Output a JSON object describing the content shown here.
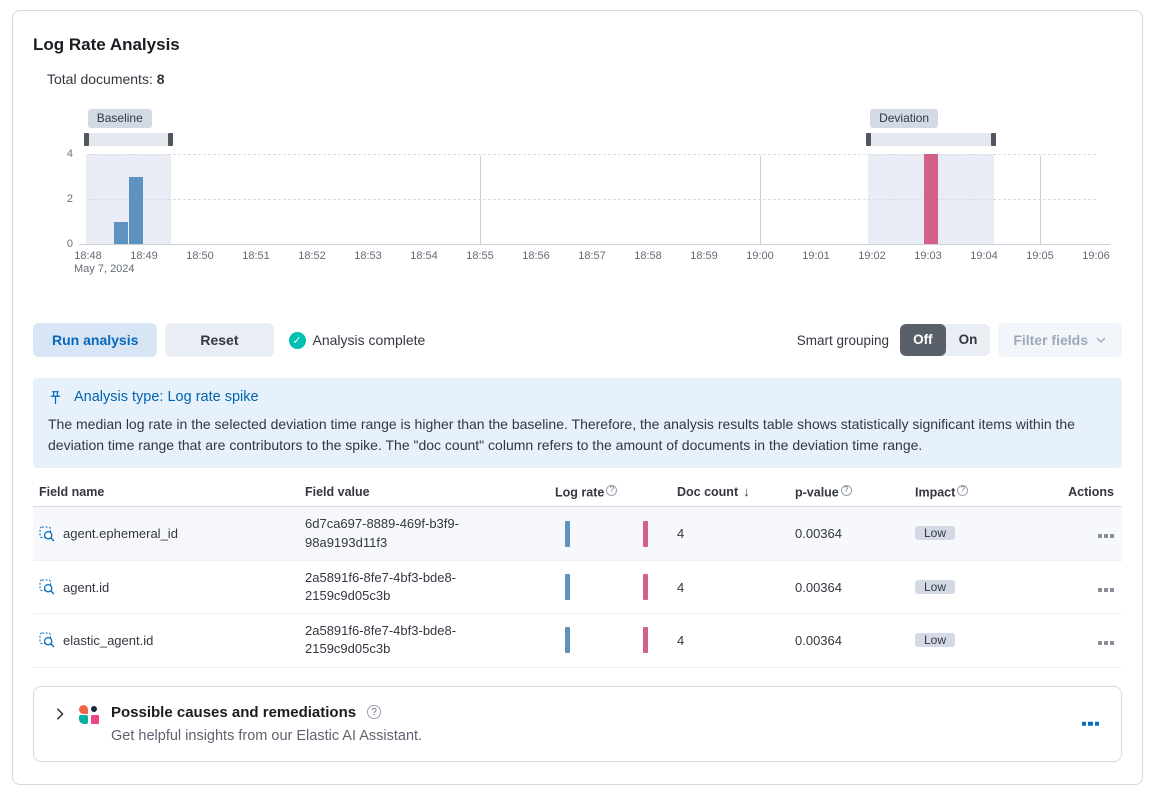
{
  "panel": {
    "title": "Log Rate Analysis"
  },
  "summary": {
    "label": "Total documents:",
    "value": "8"
  },
  "chart_data": {
    "type": "bar",
    "ylim": [
      0,
      4
    ],
    "yticks": [
      0,
      2,
      4
    ],
    "xticks": [
      "18:48",
      "18:49",
      "18:50",
      "18:51",
      "18:52",
      "18:53",
      "18:54",
      "18:55",
      "18:56",
      "18:57",
      "18:58",
      "18:59",
      "19:00",
      "19:01",
      "19:02",
      "19:03",
      "19:04",
      "19:05",
      "19:06"
    ],
    "vertical_gridline_indices": [
      7,
      12,
      17
    ],
    "date_label": "May 7, 2024",
    "bars": [
      {
        "time": "18:48:30",
        "offset_min": 0.464,
        "width_min": 0.25,
        "count": 1,
        "series": "baseline"
      },
      {
        "time": "18:48:45",
        "offset_min": 0.732,
        "width_min": 0.25,
        "count": 3,
        "series": "baseline"
      },
      {
        "time": "19:03:00",
        "offset_min": 14.93,
        "width_min": 0.25,
        "count": 4,
        "series": "deviation"
      }
    ],
    "windows": {
      "baseline": {
        "label": "Baseline",
        "from_min": -0.04,
        "to_min": 1.48,
        "from_time": "18:48:00",
        "to_time": "18:49:30"
      },
      "deviation": {
        "label": "Deviation",
        "from_min": 13.93,
        "to_min": 16.18,
        "from_time": "19:02:00",
        "to_time": "19:04:10"
      }
    },
    "colors": {
      "baseline_bar": "#6092c0",
      "deviation_bar": "#d36086",
      "window_fill": "#e9ecf4",
      "brush_fill": "#e4e8ef",
      "brush_handle": "#50555e"
    }
  },
  "controls": {
    "run_button": "Run analysis",
    "reset_button": "Reset",
    "status": "Analysis complete",
    "smart_grouping_label": "Smart grouping",
    "toggle_off": "Off",
    "toggle_on": "On",
    "filter_fields": "Filter fields"
  },
  "callout": {
    "title": "Analysis type: Log rate spike",
    "body": "The median log rate in the selected deviation time range is higher than the baseline. Therefore, the analysis results table shows statistically significant items within the deviation time range that are contributors to the spike. The \"doc count\" column refers to the amount of documents in the deviation time range."
  },
  "table": {
    "columns": [
      "Field name",
      "Field value",
      "Log rate",
      "Doc count",
      "p-value",
      "Impact",
      "Actions"
    ],
    "sorted_column": "Doc count",
    "sort_direction": "descending",
    "rows": [
      {
        "field_name": "agent.ephemeral_id",
        "field_value": "6d7ca697-8889-469f-b3f9-98a9193d11f3",
        "doc_count": "4",
        "p_value": "0.00364",
        "impact": "Low"
      },
      {
        "field_name": "agent.id",
        "field_value": "2a5891f6-8fe7-4bf3-bde8-2159c9d05c3b",
        "doc_count": "4",
        "p_value": "0.00364",
        "impact": "Low"
      },
      {
        "field_name": "elastic_agent.id",
        "field_value": "2a5891f6-8fe7-4bf3-bde8-2159c9d05c3b",
        "doc_count": "4",
        "p_value": "0.00364",
        "impact": "Low"
      }
    ]
  },
  "footer": {
    "title": "Possible causes and remediations",
    "subtitle": "Get helpful insights from our Elastic AI Assistant."
  }
}
